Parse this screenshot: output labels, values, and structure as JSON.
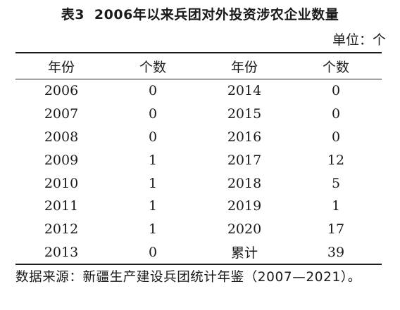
{
  "title": {
    "label": "表3",
    "text": "2006年以来兵团对外投资涉农企业数量"
  },
  "unit": "单位：个",
  "table": {
    "headers": [
      "年份",
      "个数",
      "年份",
      "个数"
    ],
    "rows": [
      [
        "2006",
        "0",
        "2014",
        "0"
      ],
      [
        "2007",
        "0",
        "2015",
        "0"
      ],
      [
        "2008",
        "0",
        "2016",
        "0"
      ],
      [
        "2009",
        "1",
        "2017",
        "12"
      ],
      [
        "2010",
        "1",
        "2018",
        "5"
      ],
      [
        "2011",
        "1",
        "2019",
        "1"
      ],
      [
        "2012",
        "1",
        "2020",
        "17"
      ],
      [
        "2013",
        "0",
        "累计",
        "39"
      ]
    ]
  },
  "source": "数据来源：新疆生产建设兵团统计年鉴（2007—2021）。"
}
